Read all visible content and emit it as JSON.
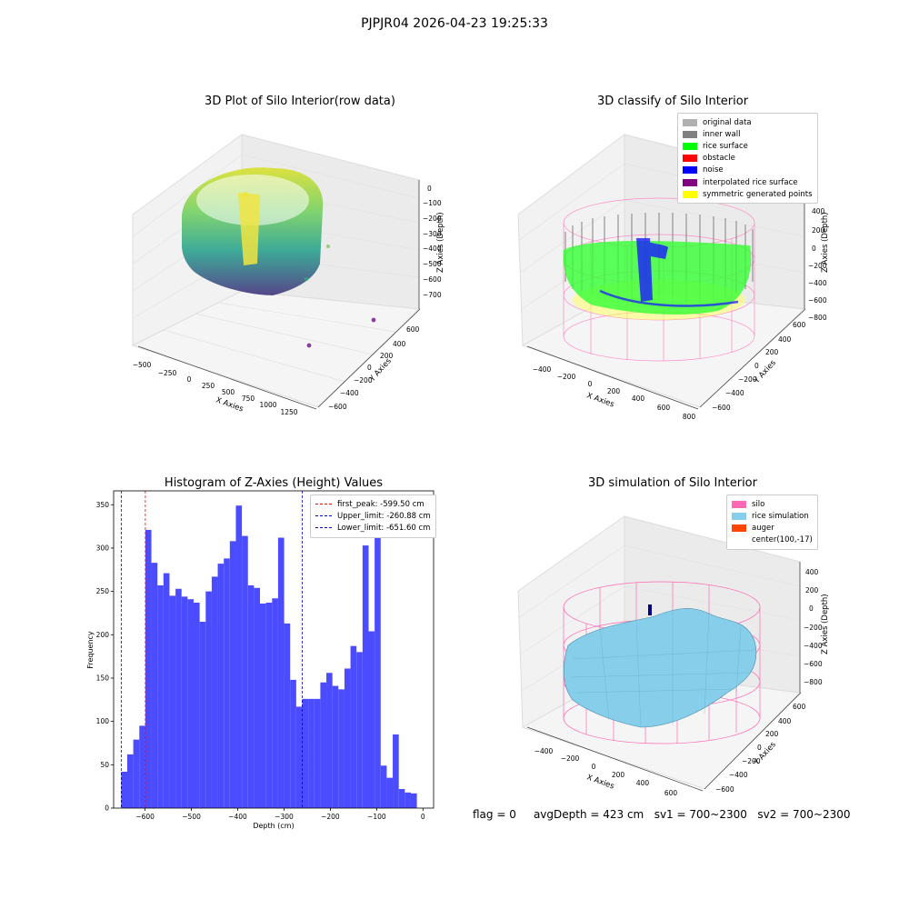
{
  "suptitle": "PJPJR04 2026-04-23 19:25:33",
  "footer": {
    "flag": "flag = 0",
    "avg_depth": "avgDepth = 423 cm",
    "sv1": "sv1 = 700~2300",
    "sv2": "sv2 = 700~2300"
  },
  "colors": {
    "histogram_bar": "#4b4bff",
    "first_peak_line": "#ff0000",
    "limit_lines": "#0000cc",
    "silo": "#ff69b4",
    "rice_simulation": "#87ceeb",
    "auger": "#ff4500"
  },
  "plot_raw": {
    "title": "3D Plot of Silo Interior(row data)",
    "xlabel": "X Axies",
    "ylabel": "Y Axies",
    "zlabel": "Z Axies (Depth)",
    "xticks": [
      "−500",
      "−250",
      "0",
      "250",
      "500",
      "750",
      "1000",
      "1250"
    ],
    "yticks": [
      "600",
      "400",
      "200",
      "0",
      "−200",
      "−400",
      "−600"
    ],
    "zticks": [
      "0",
      "−100",
      "−200",
      "−300",
      "−400",
      "−500",
      "−600",
      "−700"
    ]
  },
  "plot_classify": {
    "title": "3D classify of Silo Interior",
    "xlabel": "X Axies",
    "ylabel": "Y Axies",
    "zlabel": "Z Axies (Depth)",
    "xticks": [
      "−400",
      "−200",
      "0",
      "200",
      "400",
      "600",
      "800"
    ],
    "yticks": [
      "600",
      "400",
      "200",
      "0",
      "−200",
      "−400",
      "−600"
    ],
    "zticks": [
      "400",
      "200",
      "0",
      "−200",
      "−400",
      "−600",
      "−800"
    ],
    "legend": [
      {
        "label": "original data",
        "color": "#b0b0b0"
      },
      {
        "label": "inner wall",
        "color": "#808080"
      },
      {
        "label": "rice surface",
        "color": "#00ff00"
      },
      {
        "label": "obstacle",
        "color": "#ff0000"
      },
      {
        "label": "noise",
        "color": "#0000ff"
      },
      {
        "label": "interpolated rice surface",
        "color": "#800080"
      },
      {
        "label": "symmetric generated points",
        "color": "#ffff00"
      }
    ]
  },
  "plot_sim": {
    "title": "3D simulation of Silo Interior",
    "xlabel": "X Axies",
    "ylabel": "Y Axies",
    "zlabel": "Z Axies (Depth)",
    "xticks": [
      "−400",
      "−200",
      "0",
      "200",
      "400",
      "600"
    ],
    "yticks": [
      "600",
      "400",
      "200",
      "0",
      "−200",
      "−400",
      "−600"
    ],
    "zticks": [
      "400",
      "200",
      "0",
      "−200",
      "−400",
      "−600",
      "−800"
    ],
    "legend": [
      {
        "label": "silo",
        "color": "#ff69b4"
      },
      {
        "label": "rice simulation",
        "color": "#87ceeb"
      },
      {
        "label": "auger",
        "color": "#ff4500"
      },
      {
        "label": "center(100,-17)",
        "color": ""
      }
    ]
  },
  "chart_data": {
    "type": "bar",
    "title": "Histogram of Z-Axies (Height) Values",
    "xlabel": "Depth (cm)",
    "ylabel": "Frequency",
    "xlim": [
      -668,
      23
    ],
    "ylim": [
      0,
      366
    ],
    "xticks": [
      -600,
      -500,
      -400,
      -300,
      -200,
      -100,
      0
    ],
    "xtick_labels": [
      "−600",
      "−500",
      "−400",
      "−300",
      "−200",
      "−100",
      "0"
    ],
    "yticks": [
      0,
      50,
      100,
      150,
      200,
      250,
      300,
      350
    ],
    "bin_start": -651.6,
    "bin_width": 13.03,
    "values": [
      42,
      62,
      79,
      95,
      321,
      283,
      257,
      271,
      245,
      253,
      244,
      241,
      237,
      215,
      250,
      267,
      282,
      288,
      308,
      349,
      314,
      257,
      254,
      236,
      237,
      242,
      312,
      213,
      148,
      117,
      126,
      126,
      126,
      145,
      156,
      141,
      137,
      161,
      187,
      180,
      303,
      204,
      334,
      49,
      35,
      85,
      22,
      18,
      17
    ],
    "lines": [
      {
        "name": "first_peak: -599.50 cm",
        "x": -599.5,
        "color": "#ff0000"
      },
      {
        "name": "Upper_limit: -260.88 cm",
        "x": -260.88,
        "color": "#0000cc"
      },
      {
        "name": "Lower_limit: -651.60 cm",
        "x": -651.6,
        "color": "#0000cc"
      }
    ],
    "legend_position": "upper right",
    "grid": false
  }
}
